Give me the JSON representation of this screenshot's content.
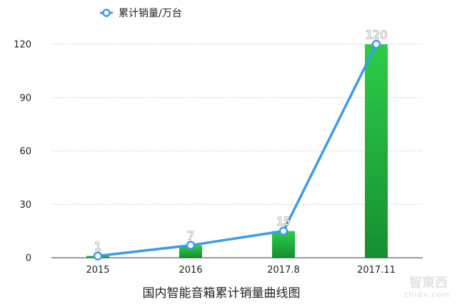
{
  "chart_data": {
    "type": "bar",
    "categories": [
      "2015",
      "2016",
      "2017.8",
      "2017.11"
    ],
    "series": [
      {
        "name": "累计销量/万台",
        "render": "line",
        "values": [
          1,
          7,
          15,
          120
        ],
        "color": "#3d9be9"
      },
      {
        "render": "bar",
        "values": [
          1,
          7,
          15,
          120
        ],
        "color": "#1fb53f"
      }
    ],
    "data_labels": [
      "1",
      "7",
      "15",
      "120"
    ],
    "yticks": [
      0,
      30,
      60,
      90,
      120
    ],
    "ylim": [
      0,
      120
    ],
    "grid": true,
    "legend_position": "top-left",
    "caption": "国内智能音箱累计销量曲线图",
    "title": "",
    "xlabel": "",
    "ylabel": ""
  },
  "watermark": {
    "brand": "智東西",
    "site": "zhidx.com"
  }
}
